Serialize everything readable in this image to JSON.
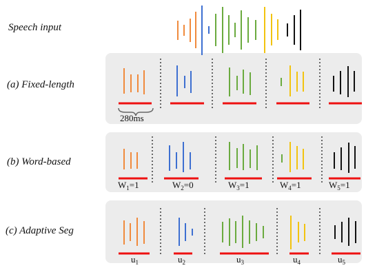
{
  "labels": {
    "speech_input": "Speech input",
    "fixed": "(a) Fixed-length",
    "word": "(b) Word-based",
    "adaptive": "(c) Adaptive Seg",
    "duration": "280ms"
  },
  "colors": {
    "orange": "#f08a3c",
    "blue": "#3d6fd1",
    "green": "#6aaa3e",
    "yellow": "#f2c30f",
    "black": "#111111",
    "segment_underline": "#ee1111",
    "panel_bg": "#ececec",
    "divider": "#666666"
  },
  "word_segments": [
    {
      "letter": "W",
      "index": "1",
      "value": "=1"
    },
    {
      "letter": "W",
      "index": "2",
      "value": "=0"
    },
    {
      "letter": "W",
      "index": "3",
      "value": "=1"
    },
    {
      "letter": "W",
      "index": "4",
      "value": "=1"
    },
    {
      "letter": "W",
      "index": "5",
      "value": "=1"
    }
  ],
  "adaptive_segments": [
    {
      "letter": "u",
      "index": "1"
    },
    {
      "letter": "u",
      "index": "2"
    },
    {
      "letter": "u",
      "index": "3"
    },
    {
      "letter": "u",
      "index": "4"
    },
    {
      "letter": "u",
      "index": "5"
    }
  ]
}
